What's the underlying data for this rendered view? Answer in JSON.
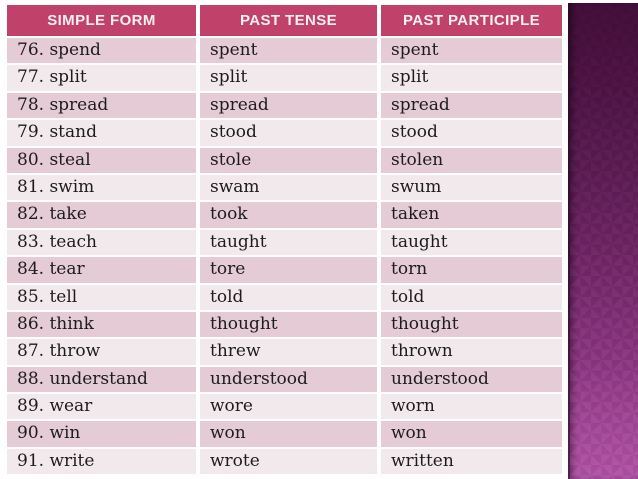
{
  "table": {
    "headers": [
      "SIMPLE FORM",
      "PAST TENSE",
      "PAST PARTICIPLE"
    ],
    "rows": [
      [
        "76. spend",
        "spent",
        "spent"
      ],
      [
        "77. split",
        "split",
        "split"
      ],
      [
        "78. spread",
        "spread",
        "spread"
      ],
      [
        "79. stand",
        "stood",
        "stood"
      ],
      [
        "80. steal",
        "stole",
        "stolen"
      ],
      [
        "81. swim",
        "swam",
        "swum"
      ],
      [
        "82. take",
        "took",
        "taken"
      ],
      [
        "83. teach",
        "taught",
        "taught"
      ],
      [
        "84. tear",
        "tore",
        "torn"
      ],
      [
        "85. tell",
        "told",
        "told"
      ],
      [
        "86. think",
        "thought",
        "thought"
      ],
      [
        "87. throw",
        "threw",
        "thrown"
      ],
      [
        "88. understand",
        "understood",
        "understood"
      ],
      [
        "89. wear",
        "wore",
        "worn"
      ],
      [
        "90. win",
        "won",
        "won"
      ],
      [
        "91. write",
        "wrote",
        "written"
      ]
    ],
    "colors": {
      "header_bg": "#c04169",
      "header_text": "#f8f0f3",
      "row_dark": "#e4cbd5",
      "row_light": "#f2e9ed",
      "body_text": "#1c1c1c",
      "gridline": "#ffffff"
    }
  },
  "sidebar": {
    "style": "diamond-pattern-gradient",
    "colors": {
      "top": "#420e38",
      "middle": "#6e2364",
      "bottom": "#ab4da0"
    }
  }
}
